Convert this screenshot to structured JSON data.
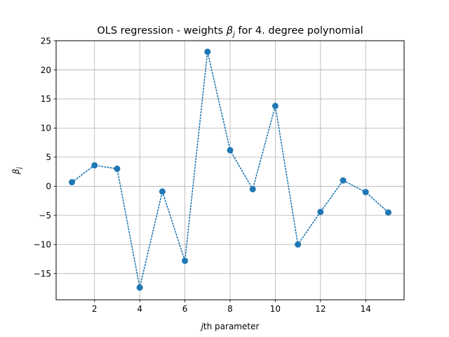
{
  "chart_data": {
    "type": "line",
    "title_prefix": "OLS regression - weights ",
    "title_symbol": "β",
    "title_subscript": "j",
    "title_suffix": " for 4. degree polynomial",
    "xlabel_italic": "j",
    "xlabel_rest": "th parameter",
    "ylabel_symbol": "β",
    "ylabel_subscript": "j",
    "xlim": [
      0.3,
      15.7
    ],
    "ylim": [
      -19.5,
      25
    ],
    "xticks": [
      2,
      4,
      6,
      8,
      10,
      12,
      14
    ],
    "yticks": [
      -15,
      -10,
      -5,
      0,
      5,
      10,
      15,
      20,
      25
    ],
    "grid": true,
    "line_style": "dotted",
    "marker": "circle",
    "color": "#1f77b4",
    "x": [
      1,
      2,
      3,
      4,
      5,
      6,
      7,
      8,
      9,
      10,
      11,
      12,
      13,
      14,
      15
    ],
    "y": [
      0.7,
      3.6,
      3.0,
      -17.4,
      -0.9,
      -12.8,
      23.1,
      6.2,
      -0.5,
      13.8,
      -10.0,
      -4.4,
      1.0,
      -1.0,
      -4.5
    ]
  }
}
